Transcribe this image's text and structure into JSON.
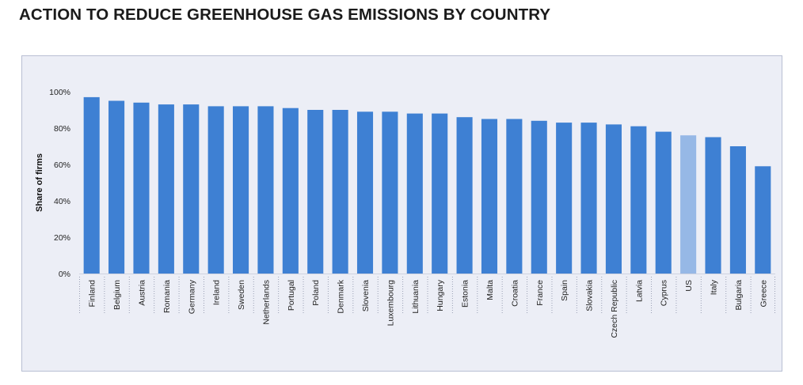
{
  "header": {
    "title": "ACTION TO REDUCE GREENHOUSE GAS EMISSIONS BY COUNTRY"
  },
  "colors": {
    "bar": "#3e80d3",
    "highlight": "#96b8e6",
    "panel": "#eceef6",
    "grid": "#9aa0b4"
  },
  "chart_data": {
    "type": "bar",
    "title": "ACTION TO REDUCE GREENHOUSE GAS EMISSIONS BY COUNTRY",
    "xlabel": "",
    "ylabel": "Share of firms",
    "ylim": [
      0,
      100
    ],
    "yticks": [
      "0%",
      "20%",
      "40%",
      "60%",
      "80%",
      "100%"
    ],
    "categories": [
      "Finland",
      "Belgium",
      "Austria",
      "Romania",
      "Germany",
      "Ireland",
      "Sweden",
      "Netherlands",
      "Portugal",
      "Poland",
      "Denmark",
      "Slovenia",
      "Luxembourg",
      "Lithuania",
      "Hungary",
      "Estonia",
      "Malta",
      "Croatia",
      "France",
      "Spain",
      "Slovakia",
      "Czech Republic",
      "Latvia",
      "Cyprus",
      "US",
      "Italy",
      "Bulgaria",
      "Greece"
    ],
    "values": [
      97,
      95,
      94,
      93,
      93,
      92,
      92,
      92,
      91,
      90,
      90,
      89,
      89,
      88,
      88,
      86,
      85,
      85,
      84,
      83,
      83,
      82,
      81,
      78,
      76,
      75,
      70,
      59
    ],
    "highlight": "US",
    "grid": false,
    "legend": "none"
  }
}
